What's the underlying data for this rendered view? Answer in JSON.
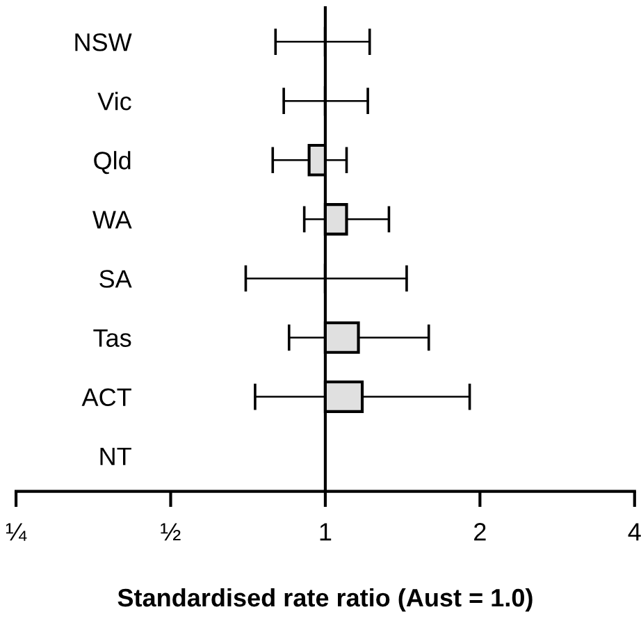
{
  "chart_data": {
    "type": "bar",
    "orientation": "horizontal",
    "log": "x",
    "xlabel": "Standardised rate ratio (Aust = 1.0)",
    "categories": [
      "NSW",
      "Vic",
      "Qld",
      "WA",
      "SA",
      "Tas",
      "ACT",
      "NT"
    ],
    "base": [
      1,
      1,
      1,
      1,
      1,
      1,
      1,
      null
    ],
    "values": [
      0,
      0,
      -0.07,
      0.1,
      0,
      0.16,
      0.18,
      null
    ],
    "errors": [
      [
        0.8,
        1.22
      ],
      [
        0.83,
        1.21
      ],
      [
        0.79,
        1.1
      ],
      [
        0.91,
        1.33
      ],
      [
        0.7,
        1.44
      ],
      [
        0.85,
        1.59
      ],
      [
        0.73,
        1.91
      ],
      null
    ],
    "colors": [
      "#000000",
      "#000000",
      "#e0e0e0",
      "#e0e0e0",
      "#000000",
      "#e0e0e0",
      "#e0e0e0",
      null
    ],
    "xlim": [
      0.25,
      4
    ],
    "xticks": [
      {
        "value": 0.25,
        "label": "¼"
      },
      {
        "value": 0.5,
        "label": "½"
      },
      1,
      2,
      4
    ],
    "ref_lines": [
      {
        "axis": "x",
        "value": 1,
        "color": "#000000"
      }
    ],
    "grid": false,
    "legend": false
  }
}
